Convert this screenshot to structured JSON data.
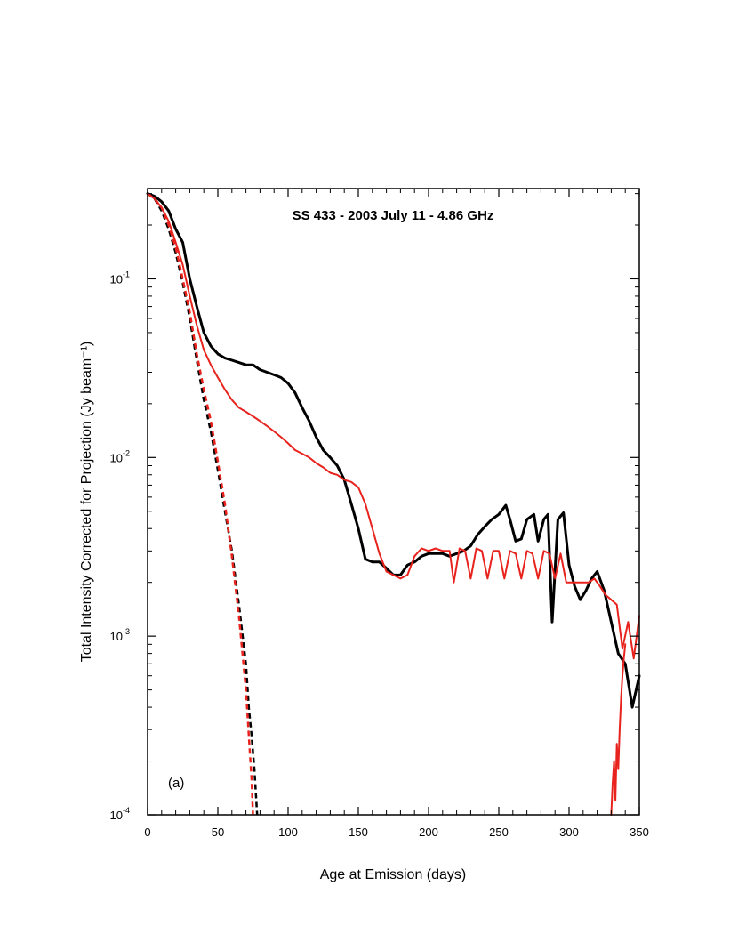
{
  "chart_data": {
    "type": "line",
    "title": "SS 433  -  2003 July 11  -  4.86 GHz",
    "panel_label": "(a)",
    "xlabel": "Age at Emission (days)",
    "ylabel": "Total Intensity Corrected for Projection (Jy beam⁻¹)",
    "xlim": [
      0,
      350
    ],
    "ylim": [
      0.0001,
      0.32
    ],
    "yscale": "log",
    "x_ticks": [
      0,
      50,
      100,
      150,
      200,
      250,
      300,
      350
    ],
    "x_tick_labels": [
      "0",
      "50",
      "100",
      "150",
      "200",
      "250",
      "300",
      "350"
    ],
    "y_ticks": [
      {
        "value": 0.1,
        "base": "10",
        "exp": "-1"
      },
      {
        "value": 0.01,
        "base": "10",
        "exp": "-2"
      },
      {
        "value": 0.001,
        "base": "10",
        "exp": "-3"
      },
      {
        "value": 0.0001,
        "base": "10",
        "exp": "-4"
      }
    ],
    "grid": false,
    "series": [
      {
        "color": "#000000",
        "style": "solid",
        "width": 3,
        "x": [
          0,
          5,
          10,
          15,
          20,
          25,
          30,
          35,
          40,
          45,
          50,
          55,
          60,
          65,
          70,
          75,
          80,
          85,
          90,
          95,
          100,
          105,
          110,
          115,
          120,
          125,
          130,
          135,
          140,
          145,
          150,
          155,
          160,
          165,
          170,
          175,
          180,
          185,
          190,
          195,
          200,
          205,
          210,
          215,
          220,
          225,
          230,
          235,
          240,
          245,
          250,
          255,
          258,
          262,
          266,
          270,
          275,
          278,
          282,
          285,
          288,
          292,
          296,
          300,
          304,
          308,
          312,
          316,
          320,
          325,
          330,
          335,
          340,
          345,
          350
        ],
        "y": [
          0.3,
          0.29,
          0.27,
          0.24,
          0.19,
          0.16,
          0.1,
          0.07,
          0.05,
          0.042,
          0.038,
          0.036,
          0.035,
          0.034,
          0.033,
          0.033,
          0.031,
          0.03,
          0.029,
          0.028,
          0.026,
          0.023,
          0.019,
          0.016,
          0.013,
          0.011,
          0.01,
          0.009,
          0.0075,
          0.0055,
          0.004,
          0.0027,
          0.0026,
          0.0026,
          0.0024,
          0.0022,
          0.0022,
          0.0025,
          0.0026,
          0.0028,
          0.0029,
          0.0029,
          0.0029,
          0.0028,
          0.0029,
          0.003,
          0.0032,
          0.0037,
          0.0041,
          0.0045,
          0.0048,
          0.0054,
          0.0045,
          0.0034,
          0.0035,
          0.0045,
          0.0048,
          0.0034,
          0.0045,
          0.0048,
          0.0012,
          0.0045,
          0.0049,
          0.0025,
          0.0019,
          0.0016,
          0.0018,
          0.0021,
          0.0023,
          0.0018,
          0.0012,
          0.0008,
          0.0007,
          0.0004,
          0.0006
        ]
      },
      {
        "color": "#e8231d",
        "style": "solid",
        "width": 2,
        "x": [
          0,
          5,
          10,
          15,
          20,
          25,
          30,
          35,
          40,
          45,
          50,
          55,
          60,
          65,
          70,
          75,
          80,
          85,
          90,
          95,
          100,
          105,
          110,
          115,
          120,
          125,
          130,
          135,
          140,
          145,
          150,
          155,
          160,
          165,
          170,
          175,
          180,
          185,
          190,
          195,
          200,
          205,
          210,
          215,
          218,
          222,
          226,
          230,
          234,
          238,
          242,
          246,
          250,
          254,
          258,
          262,
          266,
          270,
          274,
          278,
          282,
          286,
          290,
          294,
          298,
          302,
          306,
          310,
          314,
          318,
          322,
          326,
          330,
          334,
          338,
          342,
          346,
          350
        ],
        "y": [
          0.3,
          0.28,
          0.25,
          0.21,
          0.16,
          0.12,
          0.08,
          0.055,
          0.04,
          0.033,
          0.028,
          0.024,
          0.021,
          0.019,
          0.018,
          0.017,
          0.016,
          0.015,
          0.014,
          0.013,
          0.012,
          0.011,
          0.0105,
          0.01,
          0.0093,
          0.0088,
          0.0082,
          0.008,
          0.0075,
          0.0073,
          0.0068,
          0.0055,
          0.004,
          0.0029,
          0.0023,
          0.0022,
          0.0021,
          0.0022,
          0.0028,
          0.0031,
          0.003,
          0.0031,
          0.003,
          0.003,
          0.002,
          0.0031,
          0.003,
          0.0021,
          0.0031,
          0.003,
          0.0021,
          0.003,
          0.003,
          0.0021,
          0.003,
          0.0029,
          0.0021,
          0.003,
          0.0029,
          0.0021,
          0.003,
          0.0029,
          0.0021,
          0.0029,
          0.002,
          0.002,
          0.002,
          0.002,
          0.002,
          0.0021,
          0.0019,
          0.0017,
          0.0016,
          0.0015,
          0.00085,
          0.0012,
          0.00075,
          0.0013
        ]
      },
      {
        "color": "#e8231d",
        "style": "solid",
        "width": 2,
        "x": [
          330,
          331,
          332,
          333,
          334,
          335,
          336,
          337,
          338,
          339,
          340
        ],
        "y": [
          0.0001,
          0.00015,
          0.0002,
          0.00012,
          0.00025,
          0.00018,
          0.0003,
          0.00045,
          0.0006,
          0.00075,
          0.0009
        ]
      },
      {
        "color": "#000000",
        "style": "dashed",
        "width": 2.5,
        "x": [
          0,
          5,
          10,
          15,
          20,
          25,
          30,
          35,
          40,
          45,
          50,
          55,
          60,
          65,
          70,
          72,
          74,
          76,
          78
        ],
        "y": [
          0.3,
          0.28,
          0.24,
          0.19,
          0.14,
          0.095,
          0.06,
          0.035,
          0.021,
          0.014,
          0.0085,
          0.005,
          0.003,
          0.0015,
          0.0007,
          0.0004,
          0.00028,
          0.00018,
          0.0001
        ]
      },
      {
        "color": "#e8231d",
        "style": "dashed",
        "width": 2.5,
        "x": [
          0,
          5,
          10,
          15,
          20,
          25,
          30,
          35,
          40,
          45,
          50,
          55,
          60,
          65,
          70,
          72,
          74,
          75
        ],
        "y": [
          0.3,
          0.28,
          0.25,
          0.2,
          0.15,
          0.1,
          0.065,
          0.038,
          0.024,
          0.016,
          0.0095,
          0.0055,
          0.0028,
          0.0013,
          0.0005,
          0.00028,
          0.00016,
          0.0001
        ]
      }
    ]
  }
}
